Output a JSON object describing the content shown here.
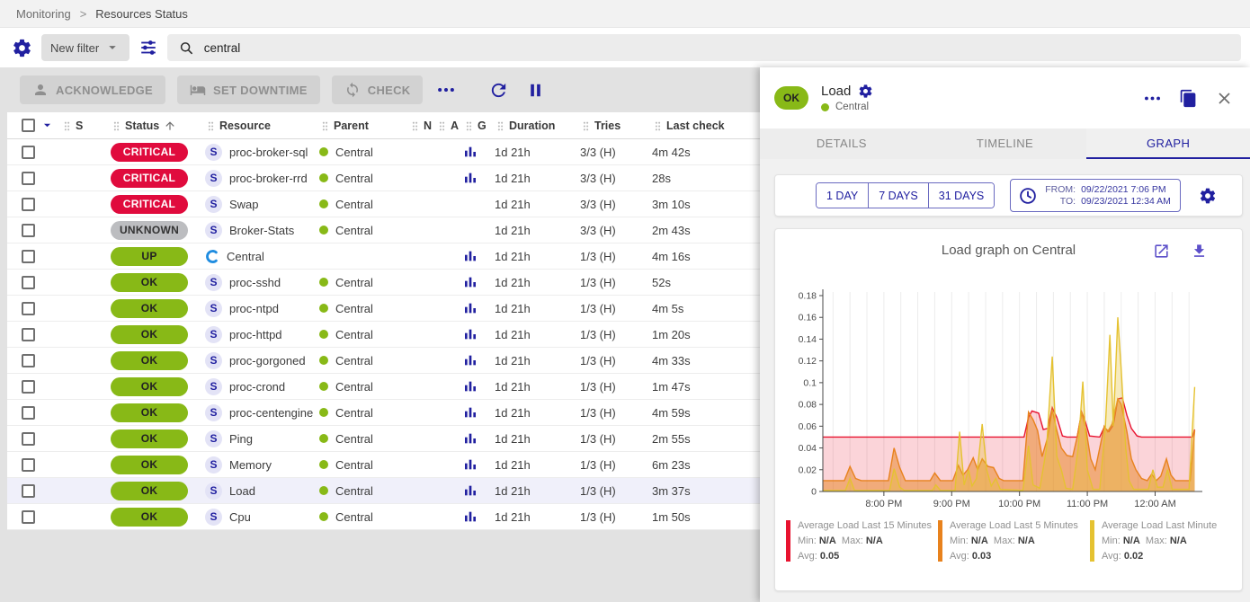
{
  "colors": {
    "primary": "#2120a0",
    "green": "#88b917",
    "icon_purple": "#5c4fc9",
    "status": {
      "CRITICAL": {
        "bg": "#e00b3d",
        "fg": "#ffffff"
      },
      "UNKNOWN": {
        "bg": "#bcbdc0",
        "fg": "#333333"
      },
      "UP": {
        "bg": "#88b917",
        "fg": "#222222"
      },
      "OK": {
        "bg": "#88b917",
        "fg": "#222222"
      }
    }
  },
  "breadcrumb": {
    "items": [
      "Monitoring",
      "Resources Status"
    ],
    "separator": ">"
  },
  "filter": {
    "new_filter_label": "New filter",
    "search_value": "central"
  },
  "toolbar": {
    "buttons": [
      "ACKNOWLEDGE",
      "SET DOWNTIME",
      "CHECK"
    ]
  },
  "table": {
    "columns": [
      {
        "label": "S"
      },
      {
        "label": "Status",
        "sorted": true
      },
      {
        "label": "Resource"
      },
      {
        "label": "Parent"
      },
      {
        "label": "N"
      },
      {
        "label": "A"
      },
      {
        "label": "G"
      },
      {
        "label": "Duration"
      },
      {
        "label": "Tries"
      },
      {
        "label": "Last check"
      }
    ],
    "rows": [
      {
        "status": "CRITICAL",
        "type": "service",
        "resource": "proc-broker-sql",
        "parent": "Central",
        "has_graph": true,
        "duration": "1d 21h",
        "tries": "3/3 (H)",
        "last_check": "4m 42s",
        "selected": false
      },
      {
        "status": "CRITICAL",
        "type": "service",
        "resource": "proc-broker-rrd",
        "parent": "Central",
        "has_graph": true,
        "duration": "1d 21h",
        "tries": "3/3 (H)",
        "last_check": "28s",
        "selected": false
      },
      {
        "status": "CRITICAL",
        "type": "service",
        "resource": "Swap",
        "parent": "Central",
        "has_graph": false,
        "duration": "1d 21h",
        "tries": "3/3 (H)",
        "last_check": "3m 10s",
        "selected": false
      },
      {
        "status": "UNKNOWN",
        "type": "service",
        "resource": "Broker-Stats",
        "parent": "Central",
        "has_graph": false,
        "duration": "1d 21h",
        "tries": "3/3 (H)",
        "last_check": "2m 43s",
        "selected": false
      },
      {
        "status": "UP",
        "type": "host",
        "resource": "Central",
        "parent": "",
        "has_graph": true,
        "duration": "1d 21h",
        "tries": "1/3 (H)",
        "last_check": "4m 16s",
        "selected": false
      },
      {
        "status": "OK",
        "type": "service",
        "resource": "proc-sshd",
        "parent": "Central",
        "has_graph": true,
        "duration": "1d 21h",
        "tries": "1/3 (H)",
        "last_check": "52s",
        "selected": false
      },
      {
        "status": "OK",
        "type": "service",
        "resource": "proc-ntpd",
        "parent": "Central",
        "has_graph": true,
        "duration": "1d 21h",
        "tries": "1/3 (H)",
        "last_check": "4m 5s",
        "selected": false
      },
      {
        "status": "OK",
        "type": "service",
        "resource": "proc-httpd",
        "parent": "Central",
        "has_graph": true,
        "duration": "1d 21h",
        "tries": "1/3 (H)",
        "last_check": "1m 20s",
        "selected": false
      },
      {
        "status": "OK",
        "type": "service",
        "resource": "proc-gorgoned",
        "parent": "Central",
        "has_graph": true,
        "duration": "1d 21h",
        "tries": "1/3 (H)",
        "last_check": "4m 33s",
        "selected": false
      },
      {
        "status": "OK",
        "type": "service",
        "resource": "proc-crond",
        "parent": "Central",
        "has_graph": true,
        "duration": "1d 21h",
        "tries": "1/3 (H)",
        "last_check": "1m 47s",
        "selected": false
      },
      {
        "status": "OK",
        "type": "service",
        "resource": "proc-centengine",
        "parent": "Central",
        "has_graph": true,
        "duration": "1d 21h",
        "tries": "1/3 (H)",
        "last_check": "4m 59s",
        "selected": false
      },
      {
        "status": "OK",
        "type": "service",
        "resource": "Ping",
        "parent": "Central",
        "has_graph": true,
        "duration": "1d 21h",
        "tries": "1/3 (H)",
        "last_check": "2m 55s",
        "selected": false
      },
      {
        "status": "OK",
        "type": "service",
        "resource": "Memory",
        "parent": "Central",
        "has_graph": true,
        "duration": "1d 21h",
        "tries": "1/3 (H)",
        "last_check": "6m 23s",
        "selected": false
      },
      {
        "status": "OK",
        "type": "service",
        "resource": "Load",
        "parent": "Central",
        "has_graph": true,
        "duration": "1d 21h",
        "tries": "1/3 (H)",
        "last_check": "3m 37s",
        "selected": true
      },
      {
        "status": "OK",
        "type": "service",
        "resource": "Cpu",
        "parent": "Central",
        "has_graph": true,
        "duration": "1d 21h",
        "tries": "1/3 (H)",
        "last_check": "1m 50s",
        "selected": false
      }
    ]
  },
  "panel": {
    "status": "OK",
    "title": "Load",
    "subtitle": "Central",
    "tabs": [
      "DETAILS",
      "TIMELINE",
      "GRAPH"
    ],
    "active_tab": "GRAPH",
    "range_buttons": [
      "1 DAY",
      "7 DAYS",
      "31 DAYS"
    ],
    "from_label": "FROM:",
    "from_value": "09/22/2021 7:06 PM",
    "to_label": "TO:",
    "to_value": "09/23/2021 12:34 AM"
  },
  "chart_data": {
    "type": "area",
    "title": "Load graph on Central",
    "x_unit": "minutes since 7:00 PM (09/22/2021)",
    "xlim": [
      6,
      337
    ],
    "ylim": [
      0,
      0.18
    ],
    "grid_minutes": 15,
    "x_ticks": [
      {
        "t": 60,
        "label": "8:00 PM"
      },
      {
        "t": 120,
        "label": "9:00 PM"
      },
      {
        "t": 180,
        "label": "10:00 PM"
      },
      {
        "t": 240,
        "label": "11:00 PM"
      },
      {
        "t": 300,
        "label": "12:00 AM"
      }
    ],
    "y_ticks": [
      0,
      0.02,
      0.04,
      0.06,
      0.08,
      0.1,
      0.12,
      0.14,
      0.16,
      0.18
    ],
    "legend_labels": {
      "min": "Min:",
      "max": "Max:",
      "avg": "Avg:"
    },
    "series": [
      {
        "name": "Average Load Last 15 Minutes",
        "color": "#e8132f",
        "fill_opacity": 0.18,
        "min": "N/A",
        "max": "N/A",
        "avg": "0.05",
        "points": [
          [
            6,
            0.05
          ],
          [
            184,
            0.05
          ],
          [
            188,
            0.068
          ],
          [
            191,
            0.074
          ],
          [
            197,
            0.072
          ],
          [
            201,
            0.057
          ],
          [
            205,
            0.058
          ],
          [
            209,
            0.077
          ],
          [
            213,
            0.068
          ],
          [
            218,
            0.051
          ],
          [
            222,
            0.05
          ],
          [
            231,
            0.05
          ],
          [
            235,
            0.073
          ],
          [
            238,
            0.065
          ],
          [
            242,
            0.051
          ],
          [
            251,
            0.05
          ],
          [
            255,
            0.059
          ],
          [
            259,
            0.055
          ],
          [
            263,
            0.061
          ],
          [
            267,
            0.085
          ],
          [
            271,
            0.086
          ],
          [
            275,
            0.07
          ],
          [
            279,
            0.058
          ],
          [
            284,
            0.051
          ],
          [
            288,
            0.05
          ],
          [
            330,
            0.05
          ],
          [
            333,
            0.05
          ],
          [
            335,
            0.057
          ]
        ]
      },
      {
        "name": "Average Load Last 5 Minutes",
        "color": "#e8821d",
        "fill_opacity": 0.5,
        "min": "N/A",
        "max": "N/A",
        "avg": "0.03",
        "points": [
          [
            6,
            0.01
          ],
          [
            25,
            0.01
          ],
          [
            30,
            0.023
          ],
          [
            35,
            0.012
          ],
          [
            40,
            0.01
          ],
          [
            64,
            0.01
          ],
          [
            69,
            0.04
          ],
          [
            74,
            0.022
          ],
          [
            79,
            0.01
          ],
          [
            101,
            0.01
          ],
          [
            105,
            0.017
          ],
          [
            110,
            0.01
          ],
          [
            121,
            0.01
          ],
          [
            126,
            0.024
          ],
          [
            130,
            0.015
          ],
          [
            134,
            0.02
          ],
          [
            139,
            0.031
          ],
          [
            143,
            0.02
          ],
          [
            147,
            0.03
          ],
          [
            152,
            0.023
          ],
          [
            157,
            0.022
          ],
          [
            162,
            0.012
          ],
          [
            166,
            0.01
          ],
          [
            183,
            0.01
          ],
          [
            188,
            0.073
          ],
          [
            192,
            0.066
          ],
          [
            196,
            0.056
          ],
          [
            200,
            0.032
          ],
          [
            205,
            0.05
          ],
          [
            209,
            0.075
          ],
          [
            213,
            0.056
          ],
          [
            217,
            0.04
          ],
          [
            222,
            0.033
          ],
          [
            227,
            0.032
          ],
          [
            231,
            0.05
          ],
          [
            235,
            0.073
          ],
          [
            239,
            0.056
          ],
          [
            243,
            0.03
          ],
          [
            247,
            0.02
          ],
          [
            251,
            0.04
          ],
          [
            255,
            0.06
          ],
          [
            258,
            0.055
          ],
          [
            262,
            0.062
          ],
          [
            267,
            0.085
          ],
          [
            270,
            0.08
          ],
          [
            275,
            0.055
          ],
          [
            279,
            0.03
          ],
          [
            283,
            0.02
          ],
          [
            288,
            0.012
          ],
          [
            293,
            0.01
          ],
          [
            297,
            0.016
          ],
          [
            301,
            0.01
          ],
          [
            305,
            0.014
          ],
          [
            310,
            0.03
          ],
          [
            314,
            0.015
          ],
          [
            318,
            0.01
          ],
          [
            331,
            0.01
          ],
          [
            335,
            0.056
          ]
        ]
      },
      {
        "name": "Average Load Last Minute",
        "color": "#e5c231",
        "fill_opacity": 0.32,
        "min": "N/A",
        "max": "N/A",
        "avg": "0.02",
        "points": [
          [
            6,
            0.001
          ],
          [
            26,
            0.001
          ],
          [
            30,
            0.012
          ],
          [
            34,
            0.001
          ],
          [
            65,
            0.001
          ],
          [
            69,
            0.021
          ],
          [
            74,
            0.004
          ],
          [
            78,
            0.001
          ],
          [
            103,
            0.001
          ],
          [
            106,
            0.006
          ],
          [
            110,
            0.001
          ],
          [
            123,
            0.001
          ],
          [
            127,
            0.055
          ],
          [
            131,
            0.006
          ],
          [
            135,
            0.02
          ],
          [
            138,
            0.005
          ],
          [
            142,
            0.012
          ],
          [
            147,
            0.062
          ],
          [
            151,
            0.02
          ],
          [
            155,
            0.005
          ],
          [
            159,
            0.012
          ],
          [
            163,
            0.002
          ],
          [
            183,
            0.001
          ],
          [
            188,
            0.042
          ],
          [
            192,
            0.006
          ],
          [
            198,
            0.003
          ],
          [
            204,
            0.04
          ],
          [
            209,
            0.124
          ],
          [
            213,
            0.032
          ],
          [
            217,
            0.02
          ],
          [
            221,
            0.003
          ],
          [
            227,
            0.002
          ],
          [
            232,
            0.04
          ],
          [
            236,
            0.101
          ],
          [
            240,
            0.02
          ],
          [
            245,
            0.002
          ],
          [
            251,
            0.002
          ],
          [
            256,
            0.06
          ],
          [
            260,
            0.144
          ],
          [
            263,
            0.06
          ],
          [
            267,
            0.16
          ],
          [
            270,
            0.112
          ],
          [
            274,
            0.04
          ],
          [
            277,
            0.01
          ],
          [
            281,
            0.002
          ],
          [
            294,
            0.002
          ],
          [
            298,
            0.02
          ],
          [
            302,
            0.004
          ],
          [
            307,
            0.004
          ],
          [
            311,
            0.02
          ],
          [
            315,
            0.002
          ],
          [
            330,
            0.002
          ],
          [
            335,
            0.096
          ]
        ]
      }
    ]
  }
}
